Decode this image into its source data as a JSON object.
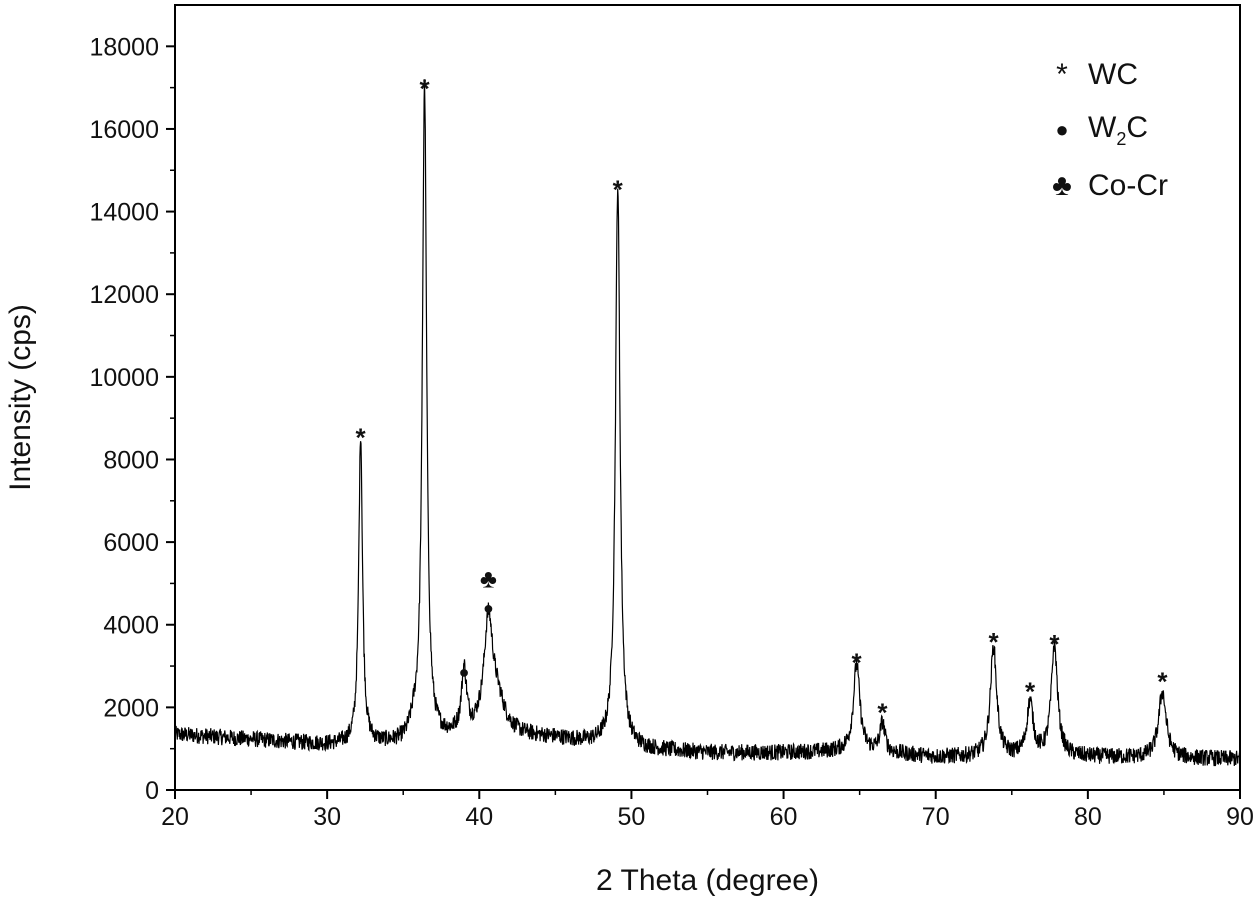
{
  "chart_data": {
    "type": "line",
    "xlabel": "2 Theta (degree)",
    "ylabel": "Intensity (cps)",
    "xlim": [
      20,
      90
    ],
    "ylim": [
      0,
      19000
    ],
    "xticks": [
      20,
      30,
      40,
      50,
      60,
      70,
      80,
      90
    ],
    "yticks": [
      0,
      2000,
      4000,
      6000,
      8000,
      10000,
      12000,
      14000,
      16000,
      18000
    ],
    "xtick_labels": [
      "20",
      "30",
      "40",
      "50",
      "60",
      "70",
      "80",
      "90"
    ],
    "ytick_labels": [
      "0",
      "2000",
      "4000",
      "6000",
      "8000",
      "10000",
      "12000",
      "14000",
      "16000",
      "18000"
    ],
    "grid": false,
    "legend_position": "top-right",
    "legend": [
      {
        "marker": "asterisk",
        "symbol": "*",
        "label": "WC"
      },
      {
        "marker": "dot",
        "symbol": "●",
        "label_main": "W",
        "label_sub": "2",
        "label_tail": "C"
      },
      {
        "marker": "club",
        "symbol": "♣",
        "label": "Co-Cr"
      }
    ],
    "series": [
      {
        "color": "#000000",
        "baseline": [
          [
            20,
            1350
          ],
          [
            30,
            1100
          ],
          [
            35,
            1100
          ],
          [
            40,
            1350
          ],
          [
            45,
            1250
          ],
          [
            50,
            1000
          ],
          [
            55,
            900
          ],
          [
            60,
            900
          ],
          [
            65,
            950
          ],
          [
            70,
            800
          ],
          [
            80,
            800
          ],
          [
            90,
            750
          ]
        ],
        "noise_amplitude": 200,
        "peaks": [
          {
            "x": 32.2,
            "height": 7500,
            "width": 0.15
          },
          {
            "x": 35.7,
            "height": 300,
            "width": 0.3
          },
          {
            "x": 36.4,
            "height": 15800,
            "width": 0.17
          },
          {
            "x": 39.0,
            "height": 1500,
            "width": 0.2
          },
          {
            "x": 40.6,
            "height": 2600,
            "width": 0.35
          },
          {
            "x": 41.2,
            "height": 700,
            "width": 0.6
          },
          {
            "x": 49.1,
            "height": 13600,
            "width": 0.18
          },
          {
            "x": 64.8,
            "height": 2100,
            "width": 0.25
          },
          {
            "x": 66.5,
            "height": 700,
            "width": 0.2
          },
          {
            "x": 73.8,
            "height": 2650,
            "width": 0.25
          },
          {
            "x": 76.2,
            "height": 1300,
            "width": 0.25
          },
          {
            "x": 77.8,
            "height": 2700,
            "width": 0.25
          },
          {
            "x": 84.9,
            "height": 1600,
            "width": 0.3
          }
        ]
      }
    ],
    "peak_markers": [
      {
        "x": 32.2,
        "y": 8700,
        "symbol": "*"
      },
      {
        "x": 36.4,
        "y": 17150,
        "symbol": "*"
      },
      {
        "x": 49.1,
        "y": 14700,
        "symbol": "*"
      },
      {
        "x": 64.8,
        "y": 3250,
        "symbol": "*"
      },
      {
        "x": 66.5,
        "y": 2050,
        "symbol": "*"
      },
      {
        "x": 73.8,
        "y": 3750,
        "symbol": "*"
      },
      {
        "x": 76.2,
        "y": 2550,
        "symbol": "*"
      },
      {
        "x": 77.8,
        "y": 3700,
        "symbol": "*"
      },
      {
        "x": 84.9,
        "y": 2800,
        "symbol": "*"
      },
      {
        "x": 39.0,
        "y": 2900,
        "symbol": "●"
      },
      {
        "x": 40.6,
        "y": 4450,
        "symbol": "●"
      },
      {
        "x": 40.6,
        "y": 5100,
        "symbol": "♣"
      }
    ]
  }
}
